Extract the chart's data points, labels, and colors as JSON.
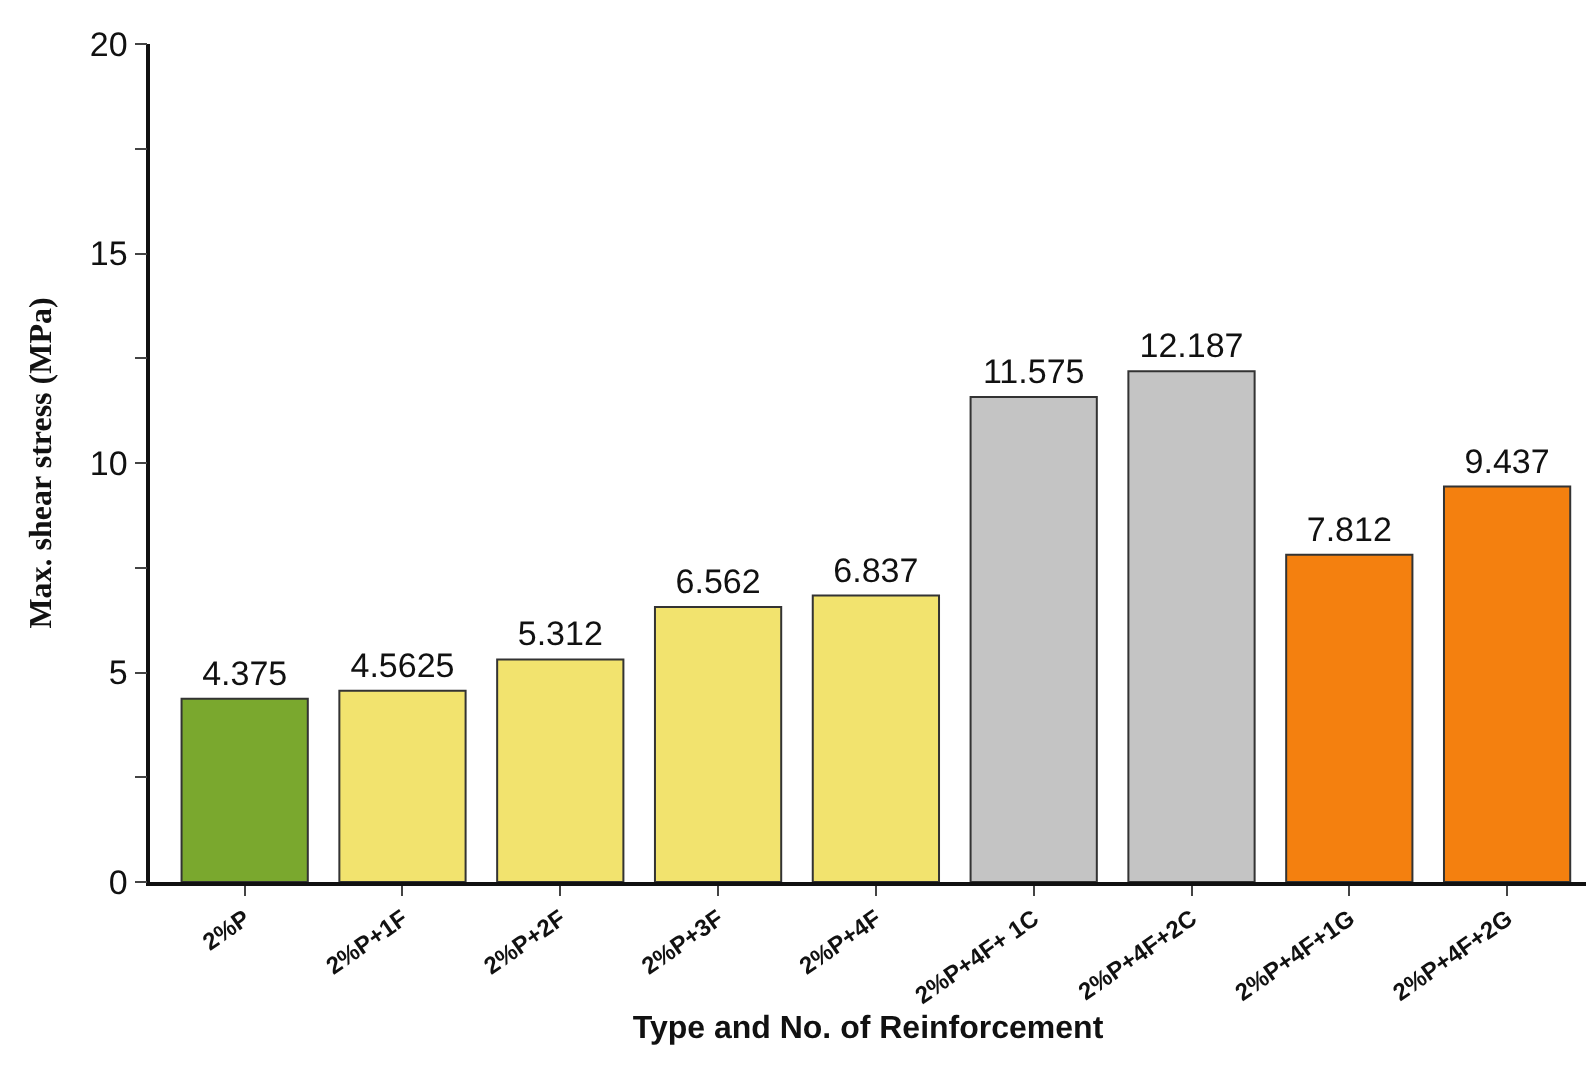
{
  "chart_data": {
    "type": "bar",
    "xlabel": "Type and No. of Reinforcement",
    "ylabel": "Max. shear stress (MPa)",
    "categories": [
      "2%P",
      "2%P+1F",
      "2%P+2F",
      "2%P+3F",
      "2%P+4F",
      "2%P+4F+ 1C",
      "2%P+4F+2C",
      "2%P+4F+1G",
      "2%P+4F+2G"
    ],
    "values": [
      4.375,
      4.5625,
      5.312,
      6.562,
      6.837,
      11.575,
      12.187,
      7.812,
      9.437
    ],
    "colors": [
      "#7aa82e",
      "#f2e36e",
      "#f2e36e",
      "#f2e36e",
      "#f2e36e",
      "#c4c4c4",
      "#c4c4c4",
      "#f4800f",
      "#f4800f"
    ],
    "ylim": [
      0,
      20
    ],
    "yticks": [
      0,
      {
        "value": 2.5,
        "label": null
      },
      5,
      {
        "value": 7.5,
        "label": null
      },
      10,
      {
        "value": 12.5,
        "label": null
      },
      15,
      {
        "value": 17.5,
        "label": null
      },
      20
    ],
    "data_labels": true
  }
}
